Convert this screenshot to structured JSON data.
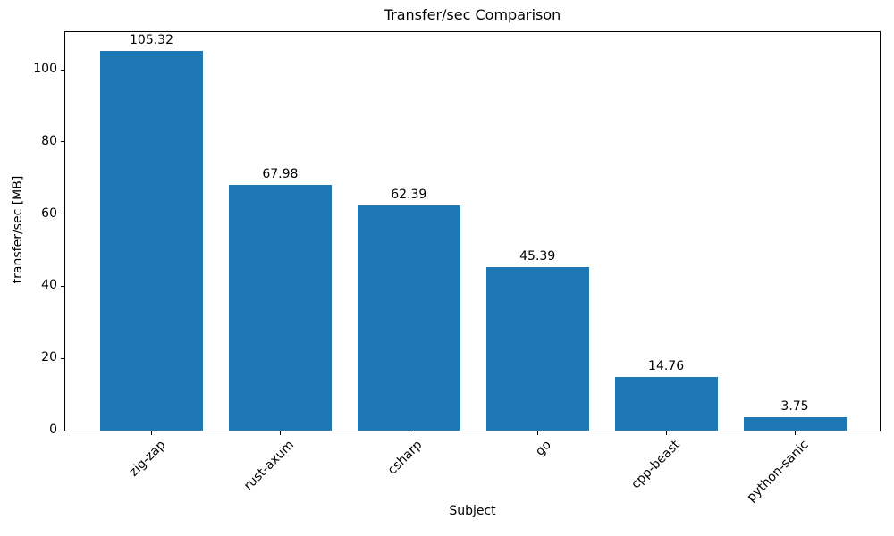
{
  "chart_data": {
    "type": "bar",
    "title": "Transfer/sec Comparison",
    "xlabel": "Subject",
    "ylabel": "transfer/sec [MB]",
    "categories": [
      "zig-zap",
      "rust-axum",
      "csharp",
      "go",
      "cpp-beast",
      "python-sanic"
    ],
    "values": [
      105.32,
      67.98,
      62.39,
      45.39,
      14.76,
      3.75
    ],
    "value_labels": [
      "105.32",
      "67.98",
      "62.39",
      "45.39",
      "14.76",
      "3.75"
    ],
    "y_ticks": [
      0,
      20,
      40,
      60,
      80,
      100
    ],
    "ylim": [
      0,
      110.9
    ],
    "bar_color": "#1f77b4",
    "text_color": "#000000",
    "background_color": "#ffffff",
    "grid": false,
    "legend": "none",
    "x_tick_rotation_deg": 45
  }
}
